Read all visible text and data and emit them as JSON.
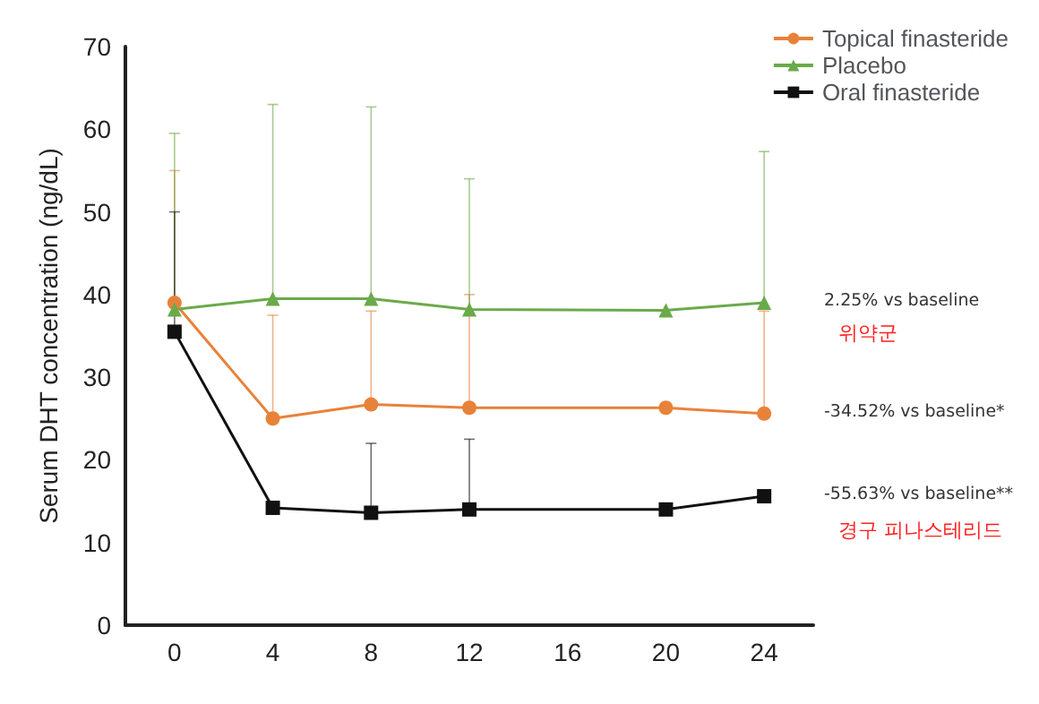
{
  "chart_data": {
    "type": "line",
    "ylabel": "Serum DHT concentration (ng/dL)",
    "x": [
      0,
      4,
      8,
      12,
      20,
      24
    ],
    "xlim": [
      -2,
      26
    ],
    "xticks": [
      0,
      4,
      8,
      12,
      16,
      20,
      24
    ],
    "ylim": [
      0,
      70
    ],
    "yticks": [
      0,
      10,
      20,
      30,
      40,
      50,
      60,
      70
    ],
    "grid": false,
    "legend": "top right",
    "line_style": "solid",
    "series": [
      {
        "name": "Topical finasteride",
        "color": "#e8823a",
        "marker": "circle",
        "values": [
          39,
          25,
          26.7,
          26.3,
          26.3,
          25.6
        ],
        "errors": [
          [
            39,
            55
          ],
          [
            25,
            37.5
          ],
          [
            26.7,
            38
          ],
          [
            26.3,
            40
          ],
          null,
          [
            25.6,
            38
          ]
        ]
      },
      {
        "name": "Placebo",
        "color": "#6aaa4a",
        "marker": "triangle",
        "values": [
          38.2,
          39.5,
          39.5,
          38.2,
          38.1,
          39
        ],
        "errors": [
          [
            38.2,
            59.5
          ],
          [
            39.5,
            63
          ],
          [
            39.5,
            62.7
          ],
          [
            38.2,
            54
          ],
          null,
          [
            39,
            57.3
          ]
        ]
      },
      {
        "name": "Oral finasteride",
        "color": "#111111",
        "marker": "square",
        "values": [
          35.5,
          14.2,
          13.6,
          14,
          14,
          15.6
        ],
        "errors": [
          [
            35.5,
            50
          ],
          null,
          [
            13.6,
            22
          ],
          [
            14,
            22.5
          ],
          null,
          null
        ]
      }
    ],
    "annotations": [
      "2.25% vs baseline",
      "위약군",
      "-34.52% vs baseline*",
      "-55.63% vs baseline**",
      "경구 피나스테리드"
    ]
  }
}
